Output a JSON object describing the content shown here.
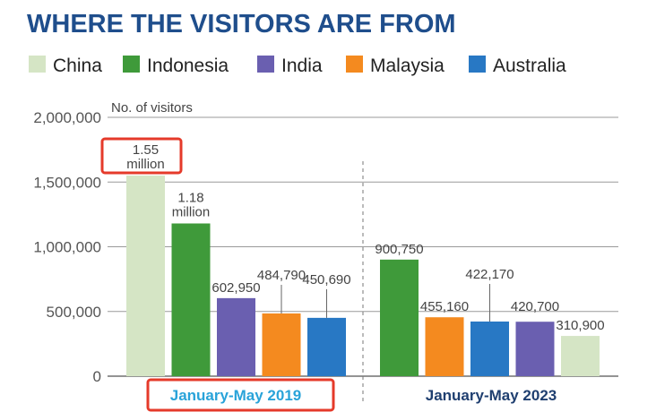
{
  "chart_data": {
    "type": "bar",
    "title": "WHERE THE VISITORS ARE FROM",
    "ylabel": "No. of visitors",
    "ylim": [
      0,
      2000000
    ],
    "yticks": [
      "0",
      "500,000",
      "1,000,000",
      "1,500,000",
      "2,000,000"
    ],
    "yticks_values": [
      0,
      500000,
      1000000,
      1500000,
      2000000
    ],
    "grid": true,
    "legend_position": "top",
    "legend": [
      {
        "name": "China",
        "color": "#d5e5c5"
      },
      {
        "name": "Indonesia",
        "color": "#3f9a3a"
      },
      {
        "name": "India",
        "color": "#6a5fb0"
      },
      {
        "name": "Malaysia",
        "color": "#f48a1f"
      },
      {
        "name": "Australia",
        "color": "#2878c4"
      }
    ],
    "groups": [
      {
        "label": "January-May 2019",
        "label_color": "#29a3d9",
        "bars": [
          {
            "country": "China",
            "value": 1550000,
            "label": [
              "1.55",
              "million"
            ]
          },
          {
            "country": "Indonesia",
            "value": 1180000,
            "label": [
              "1.18",
              "million"
            ]
          },
          {
            "country": "India",
            "value": 602950,
            "label": [
              "602,950"
            ]
          },
          {
            "country": "Malaysia",
            "value": 484790,
            "label": [
              "484,790"
            ]
          },
          {
            "country": "Australia",
            "value": 450690,
            "label": [
              "450,690"
            ]
          }
        ]
      },
      {
        "label": "January-May 2023",
        "label_color": "#1f3f70",
        "bars": [
          {
            "country": "Indonesia",
            "value": 900750,
            "label": [
              "900,750"
            ]
          },
          {
            "country": "Malaysia",
            "value": 455160,
            "label": [
              "455,160"
            ]
          },
          {
            "country": "Australia",
            "value": 422170,
            "label": [
              "422,170"
            ]
          },
          {
            "country": "India",
            "value": 420700,
            "label": [
              "420,700"
            ]
          },
          {
            "country": "China",
            "value": 310900,
            "label": [
              "310,900"
            ]
          }
        ]
      }
    ],
    "annotation_color": "#e53a2a"
  }
}
